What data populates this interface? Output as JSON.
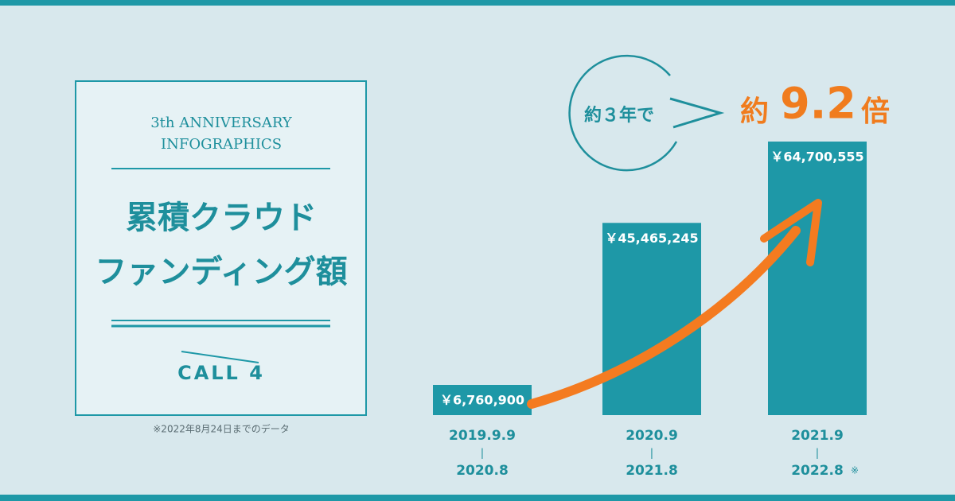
{
  "card": {
    "subtitle_lines": [
      "3th ANNIVERSARY",
      "INFOGRAPHICS"
    ],
    "title_lines": [
      "累積クラウド",
      "ファンディング額"
    ],
    "logo": "CALL 4",
    "note": "※2022年8月24日までのデータ"
  },
  "chart_data": {
    "type": "bar",
    "color": "#1e98a7",
    "label_color": "#ffffff",
    "categories": [
      "2019.9.9",
      "2020.9",
      "2021.9"
    ],
    "category_ends": [
      "2020.8",
      "2021.8",
      "2022.8"
    ],
    "category_separator": "|",
    "end_note": "※",
    "values": [
      6760900,
      45465245,
      64700555
    ],
    "value_labels": [
      "￥6,760,900",
      "￥45,465,245",
      "￥64,700,555"
    ],
    "annotations": {
      "period": "約３年で",
      "prefix": "約",
      "multiplier": "9.2",
      "suffix": "倍"
    }
  }
}
